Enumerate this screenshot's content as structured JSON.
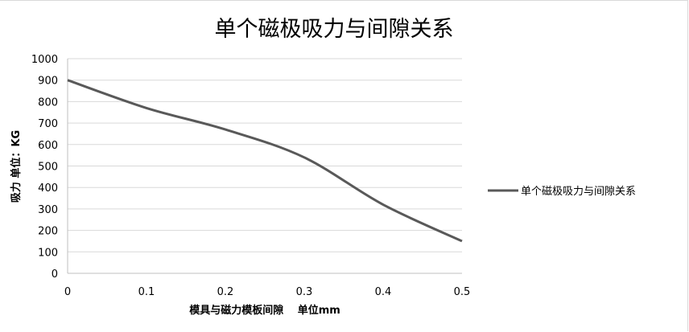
{
  "chart_data": {
    "type": "line",
    "title": "单个磁极吸力与间隙关系",
    "xlabel": "模具与磁力模板间隙　 单位mm",
    "ylabel": "吸力 单位：KG",
    "xlim": [
      0,
      0.5
    ],
    "ylim": [
      0,
      1000
    ],
    "xticks": [
      0,
      0.1,
      0.2,
      0.3,
      0.4,
      0.5
    ],
    "yticks": [
      0,
      100,
      200,
      300,
      400,
      500,
      600,
      700,
      800,
      900,
      1000
    ],
    "grid": "horizontal",
    "smooth": true,
    "legend_position": "right",
    "series": [
      {
        "name": "单个磁极吸力与间隙关系",
        "color": "#595959",
        "x": [
          0,
          0.1,
          0.2,
          0.3,
          0.4,
          0.5
        ],
        "y": [
          900,
          770,
          670,
          540,
          320,
          150
        ]
      }
    ]
  }
}
